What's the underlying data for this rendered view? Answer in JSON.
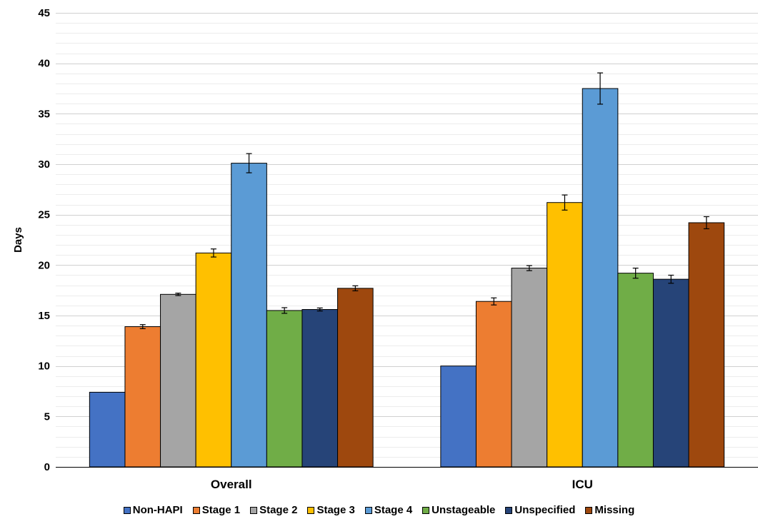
{
  "chart_data": {
    "type": "bar",
    "title": "",
    "xlabel": "",
    "ylabel": "Days",
    "ylim": [
      0,
      45
    ],
    "yticks": [
      0,
      5,
      10,
      15,
      20,
      25,
      30,
      35,
      40,
      45
    ],
    "grid": true,
    "legend_position": "bottom",
    "categories": [
      "Overall",
      "ICU"
    ],
    "series": [
      {
        "name": "Non-HAPI",
        "color": "#4472C4",
        "values": [
          7.4,
          10.0
        ],
        "error": [
          null,
          null
        ]
      },
      {
        "name": "Stage 1",
        "color": "#ED7D31",
        "values": [
          13.9,
          16.4
        ],
        "error": [
          0.2,
          0.35
        ]
      },
      {
        "name": "Stage 2",
        "color": "#A5A5A5",
        "values": [
          17.1,
          19.7
        ],
        "error": [
          0.12,
          0.25
        ]
      },
      {
        "name": "Stage 3",
        "color": "#FFC000",
        "values": [
          21.2,
          26.2
        ],
        "error": [
          0.4,
          0.75
        ]
      },
      {
        "name": "Stage 4",
        "color": "#5B9BD5",
        "values": [
          30.1,
          37.5
        ],
        "error": [
          0.95,
          1.55
        ]
      },
      {
        "name": "Unstageable",
        "color": "#70AD47",
        "values": [
          15.5,
          19.2
        ],
        "error": [
          0.28,
          0.5
        ]
      },
      {
        "name": "Unspecified",
        "color": "#264478",
        "values": [
          15.6,
          18.6
        ],
        "error": [
          0.15,
          0.4
        ]
      },
      {
        "name": "Missing",
        "color": "#9E480E",
        "values": [
          17.7,
          24.2
        ],
        "error": [
          0.25,
          0.6
        ]
      }
    ]
  }
}
